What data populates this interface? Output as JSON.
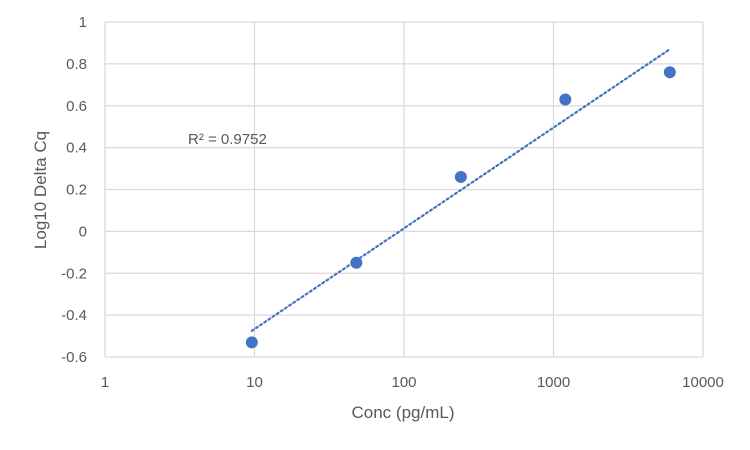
{
  "chart_data": {
    "type": "scatter",
    "xscale": "log",
    "xlim": [
      1,
      10000
    ],
    "ylim": [
      -0.6,
      1
    ],
    "xlabel": "Conc (pg/mL)",
    "ylabel": "Log10 Delta Cq",
    "x_ticks": [
      "1",
      "10",
      "100",
      "1000",
      "10000"
    ],
    "y_ticks": [
      "1",
      "0.8",
      "0.6",
      "0.4",
      "0.2",
      "0",
      "-0.2",
      "-0.4",
      "-0.6"
    ],
    "grid": true,
    "legend": "none",
    "points": [
      {
        "x": 9.6,
        "y": -0.53
      },
      {
        "x": 48,
        "y": -0.15
      },
      {
        "x": 240,
        "y": 0.26
      },
      {
        "x": 1200,
        "y": 0.63
      },
      {
        "x": 6000,
        "y": 0.76
      }
    ],
    "trendline": {
      "type": "logarithmic",
      "style": "dotted",
      "from": {
        "x": 9.6,
        "y": -0.475
      },
      "to": {
        "x": 6000,
        "y": 0.87
      }
    },
    "annotation": "R² = 0.9752",
    "colors": {
      "marker": "#4472c4",
      "trendline": "#4472c4",
      "grid": "#d9d9d9",
      "text": "#595959"
    }
  }
}
